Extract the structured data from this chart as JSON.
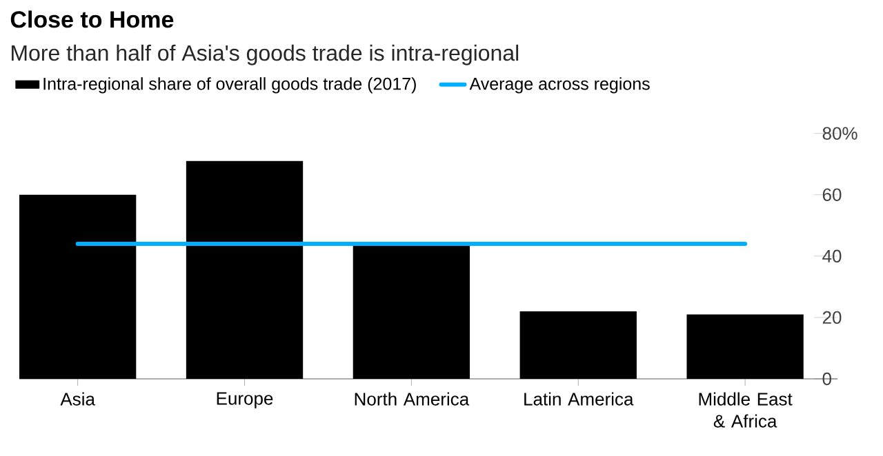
{
  "chart_data": {
    "type": "bar",
    "title": "Close to Home",
    "subtitle": "More than half of Asia's goods trade is intra-regional",
    "categories": [
      "Asia",
      "Europe",
      "North America",
      "Latin America",
      "Middle East & Africa"
    ],
    "series": [
      {
        "name": "Intra-regional share of overall goods trade (2017)",
        "color": "#000000",
        "values": [
          60,
          71,
          44.5,
          22,
          21
        ]
      },
      {
        "name": "Average across regions",
        "type": "line",
        "color": "#00b0ff",
        "values": [
          44,
          44,
          44,
          44,
          44
        ]
      }
    ],
    "ylim": [
      0,
      80
    ],
    "yticks": [
      0,
      20,
      40,
      60,
      {
        "value": 80,
        "label": "80%"
      }
    ],
    "legend": "top left"
  }
}
